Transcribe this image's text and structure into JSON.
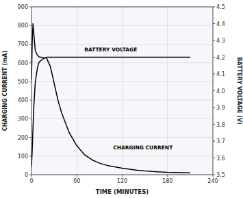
{
  "chart_data": {
    "type": "line",
    "xlabel": "TIME (MINUTES)",
    "ylabel": "CHARGING CURRENT (mA)",
    "y2label": "BATTERY VOLTAGE (V)",
    "x": [
      0,
      1,
      2,
      3,
      5,
      8,
      10,
      15,
      20,
      25,
      30,
      35,
      40,
      50,
      60,
      70,
      80,
      90,
      100,
      110,
      120,
      130,
      140,
      150,
      160,
      170,
      180,
      190,
      200,
      210
    ],
    "series": [
      {
        "color": "#000000",
        "values": [
          510,
          720,
          810,
          760,
          665,
          640,
          632,
          628,
          625,
          580,
          490,
          400,
          330,
          225,
          155,
          108,
          80,
          62,
          50,
          42,
          35,
          29,
          24,
          20,
          17,
          15,
          13,
          12,
          11,
          10
        ]
      },
      {
        "color": "#000000",
        "axis": "y2",
        "values": [
          3.55,
          3.65,
          3.78,
          3.9,
          4.05,
          4.14,
          4.17,
          4.19,
          4.2,
          4.2,
          4.2,
          4.2,
          4.2,
          4.2,
          4.2,
          4.2,
          4.2,
          4.2,
          4.2,
          4.2,
          4.2,
          4.2,
          4.2,
          4.2,
          4.2,
          4.2,
          4.2,
          4.2,
          4.2,
          4.2
        ]
      }
    ],
    "xlim": [
      0,
      240
    ],
    "xticks": [
      0,
      60,
      120,
      180,
      240
    ],
    "ylim": [
      0,
      900
    ],
    "yticks": [
      0,
      100,
      200,
      300,
      400,
      500,
      600,
      700,
      800,
      900
    ],
    "y2lim": [
      3.5,
      4.5
    ],
    "y2ticks": [
      3.5,
      3.6,
      3.7,
      3.8,
      3.9,
      {
        "value": 4,
        "label": "4.0"
      },
      4.1,
      4.2,
      4.3,
      4.4,
      4.5
    ],
    "annotations": [
      {
        "text": "BATTERY VOLTAGE",
        "x": 70,
        "y": 660
      },
      {
        "text": "CHARGING CURRENT",
        "x": 108,
        "y": 135
      }
    ],
    "grid": true
  }
}
